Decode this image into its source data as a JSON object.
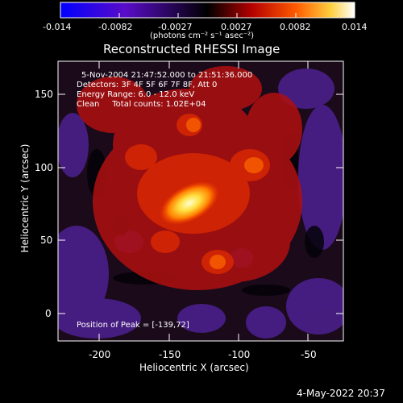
{
  "colorbar": {
    "ticks": [
      "-0.014",
      "-0.0082",
      "-0.0027",
      "0.0027",
      "0.0082",
      "0.014"
    ],
    "unit": "(photons cm⁻² s⁻¹ asec⁻²)"
  },
  "title": "Reconstructed RHESSI Image",
  "annotations": {
    "time_range": "5-Nov-2004 21:47:52.000 to 21:51:36.000",
    "detectors": "Detectors: 3F 4F 5F 6F 7F 8F, Att 0",
    "energy": "Energy Range: 6.0 - 12.0 keV",
    "method": "Clean     Total counts: 1.02E+04",
    "peak": "Position of Peak = [-139,72]"
  },
  "axes": {
    "xlabel": "Heliocentric X (arcsec)",
    "ylabel": "Heliocentric Y (arcsec)",
    "xticks": [
      "-200",
      "-150",
      "-100",
      "-50"
    ],
    "yticks": [
      "0",
      "50",
      "100",
      "150"
    ],
    "xlim": [
      -225,
      -30
    ],
    "ylim": [
      -18,
      172
    ]
  },
  "footer": {
    "date": "4-May-2022 20:37"
  },
  "peak": {
    "x": -139,
    "y": 72
  }
}
